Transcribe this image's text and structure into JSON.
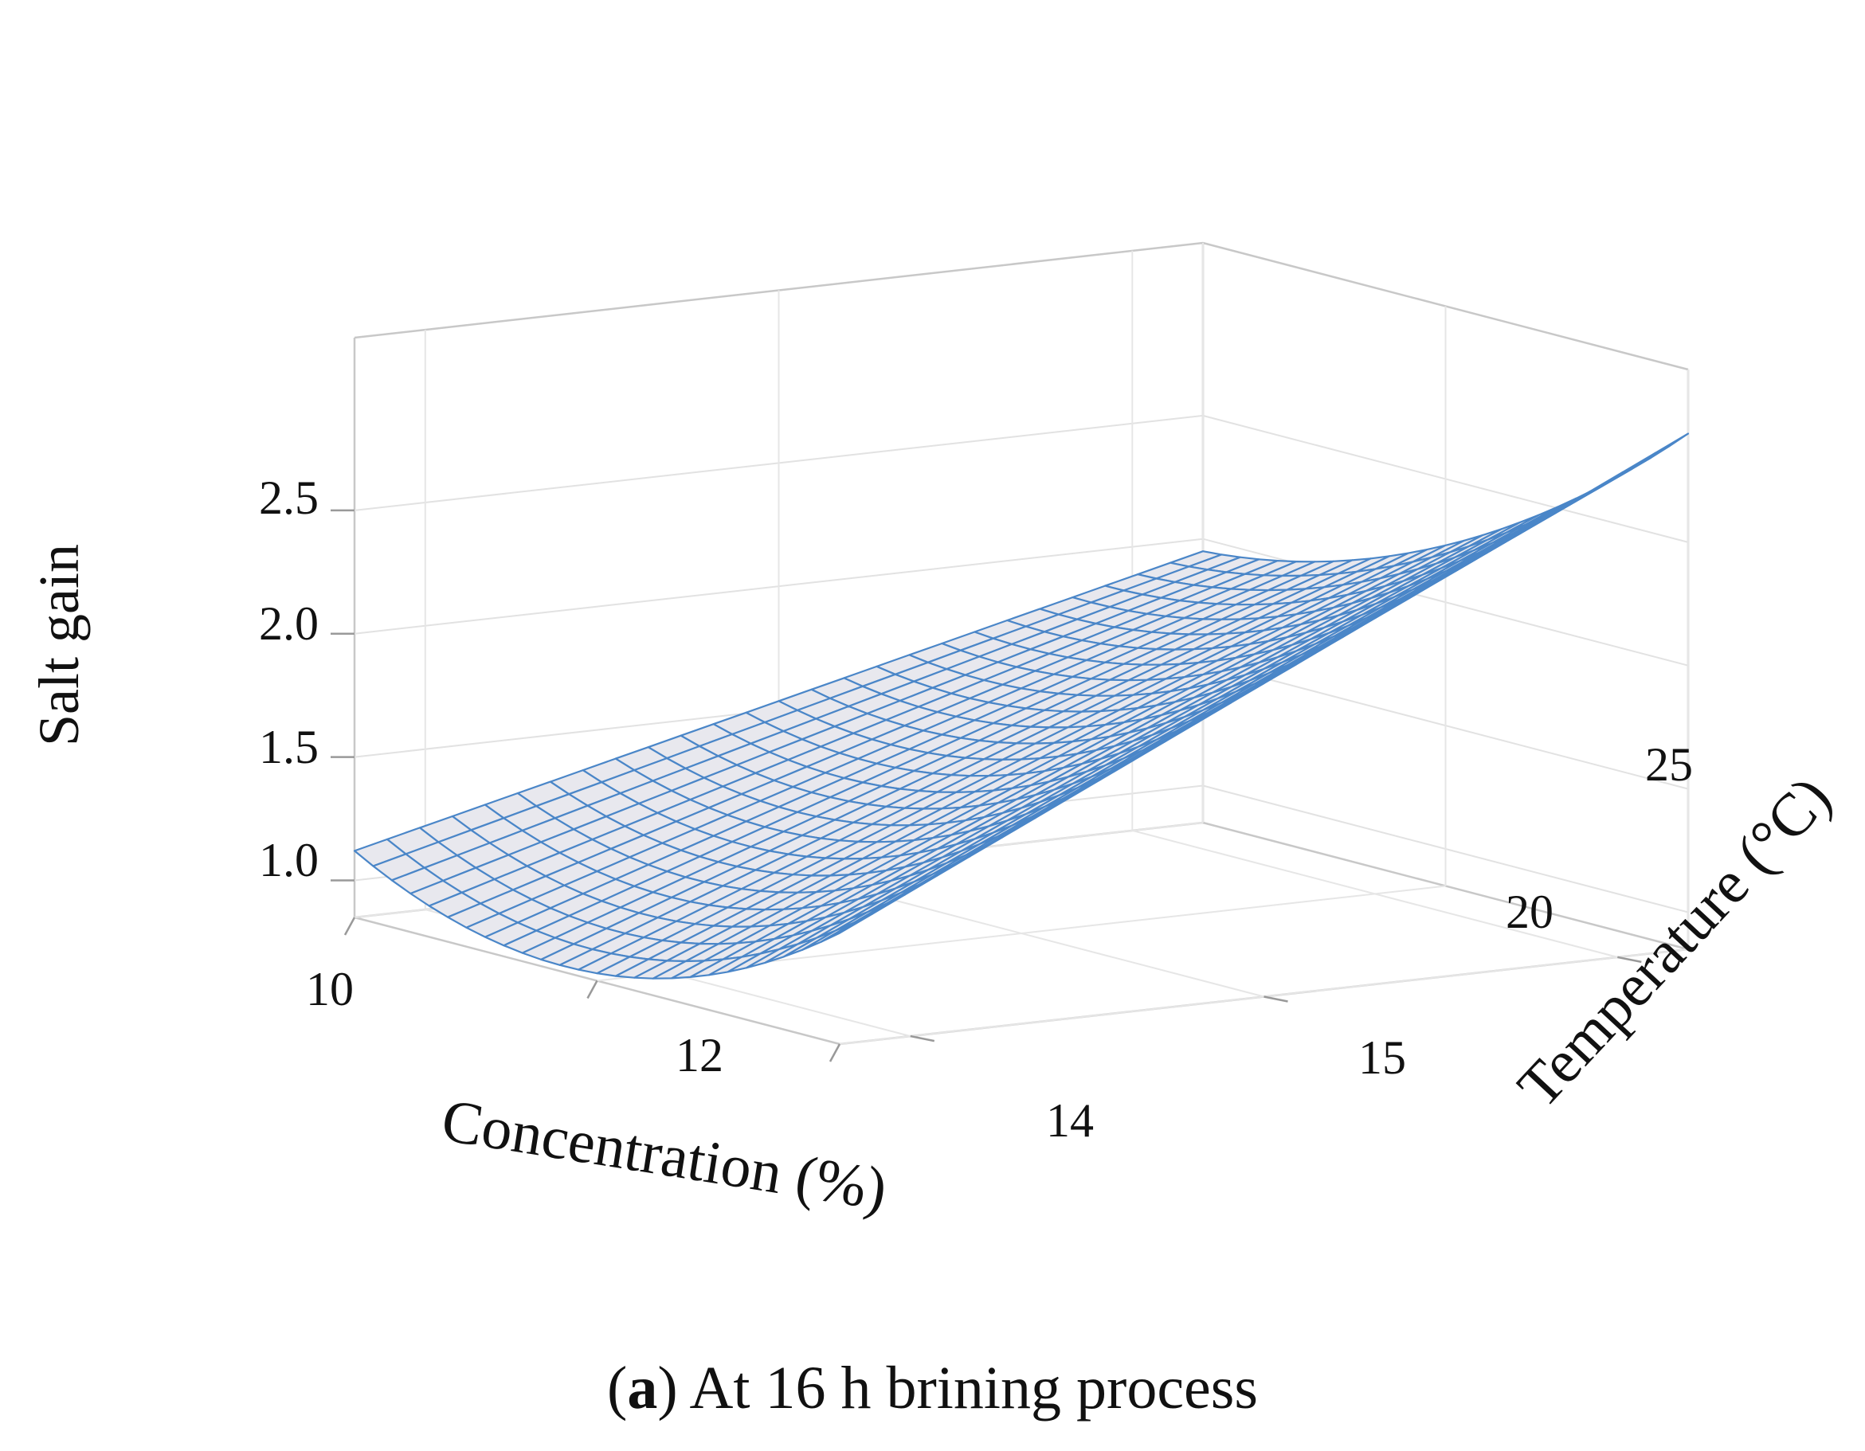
{
  "caption": {
    "open_paren": "(",
    "letter": "a",
    "text": ") At 16 h brining process"
  },
  "chart_data": {
    "type": "surface",
    "title": "",
    "xlabel": "Concentration (%)",
    "ylabel": "Temperature (°C)",
    "zlabel": "Salt gain",
    "x_ticks": [
      "10",
      "12",
      "14"
    ],
    "y_ticks": [
      "15",
      "20",
      "25"
    ],
    "z_ticks": [
      "1.0",
      "1.5",
      "2.0",
      "2.5"
    ],
    "x_range": [
      10,
      14
    ],
    "y_range": [
      14,
      26
    ],
    "z_range": [
      0.85,
      3.2
    ],
    "grid": true,
    "surface_color": "#e8e8ee",
    "mesh_color": "#4a86c8",
    "frame_color": "#c8c8c8",
    "mesh_rows": 26,
    "mesh_cols": 26,
    "corner_values": {
      "x10_y14": 1.12,
      "x14_y14": 1.3,
      "x10_y26": 1.95,
      "x14_y26": 2.94
    },
    "surface_minimum": {
      "x": 12,
      "y": 14,
      "z": 0.88
    }
  }
}
